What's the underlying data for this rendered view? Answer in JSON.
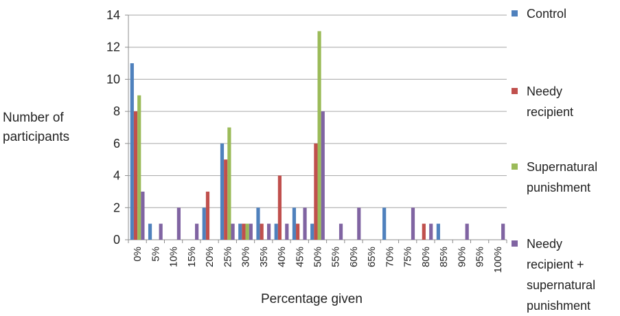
{
  "chart_data": {
    "type": "bar",
    "title": "",
    "xlabel": "Percentage given",
    "ylabel_lines": [
      "Number of",
      "participants"
    ],
    "ylim": [
      0,
      14
    ],
    "yticks": [
      0,
      2,
      4,
      6,
      8,
      10,
      12,
      14
    ],
    "grid": true,
    "legend_position": "right",
    "categories": [
      "0%",
      "5%",
      "10%",
      "15%",
      "20%",
      "25%",
      "30%",
      "35%",
      "40%",
      "45%",
      "50%",
      "55%",
      "60%",
      "65%",
      "70%",
      "75%",
      "80%",
      "85%",
      "90%",
      "95%",
      "100%"
    ],
    "series": [
      {
        "name": "Control",
        "label_lines": [
          "Control"
        ],
        "color": "#4f81bd",
        "values": [
          11,
          1,
          0,
          0,
          2,
          6,
          1,
          2,
          1,
          2,
          1,
          0,
          0,
          0,
          2,
          0,
          0,
          1,
          0,
          0,
          0
        ]
      },
      {
        "name": "Needy recipient",
        "label_lines": [
          "Needy",
          "recipient"
        ],
        "color": "#c0504d",
        "values": [
          8,
          0,
          0,
          0,
          3,
          5,
          1,
          1,
          4,
          1,
          6,
          0,
          0,
          0,
          0,
          0,
          1,
          0,
          0,
          0,
          0
        ]
      },
      {
        "name": "Supernatural punishment",
        "label_lines": [
          "Supernatural",
          "punishment"
        ],
        "color": "#9bbb59",
        "values": [
          9,
          0,
          0,
          0,
          0,
          7,
          1,
          0,
          0,
          0,
          13,
          0,
          0,
          0,
          0,
          0,
          0,
          0,
          0,
          0,
          0
        ]
      },
      {
        "name": "Needy recipient + supernatural punishment",
        "label_lines": [
          "Needy",
          "recipient +",
          "supernatural",
          "punishment"
        ],
        "color": "#8064a2",
        "values": [
          3,
          1,
          2,
          1,
          0,
          1,
          1,
          1,
          1,
          2,
          8,
          1,
          2,
          0,
          0,
          2,
          1,
          0,
          1,
          0,
          1
        ]
      }
    ]
  }
}
